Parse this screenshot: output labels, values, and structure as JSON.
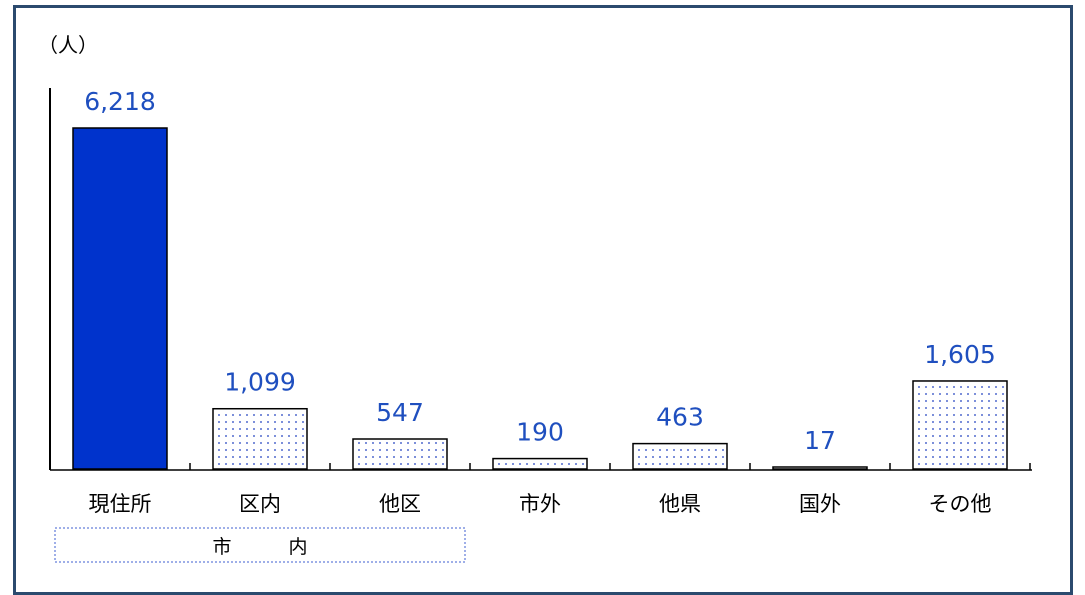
{
  "colors": {
    "frame": "#2b4a6e",
    "bar_solid": "#0033cc",
    "bar_dots": "#1f3fbf",
    "value_text": "#1f4fbf",
    "axis": "#000000",
    "bracket": "#3f5fd0"
  },
  "chart_data": {
    "type": "bar",
    "unit_label": "（人）",
    "categories": [
      "現住所",
      "区内",
      "他区",
      "市外",
      "他県",
      "国外",
      "その他"
    ],
    "values": [
      6218,
      1099,
      547,
      190,
      463,
      17,
      1605
    ],
    "value_labels": [
      "6,218",
      "1,099",
      "547",
      "190",
      "463",
      "17",
      "1,605"
    ],
    "bar_styles": [
      "solid",
      "dotted",
      "dotted",
      "dotted",
      "dotted",
      "dotted",
      "dotted"
    ],
    "group_label": "市　　　内",
    "group_span": [
      "区内",
      "他区"
    ],
    "ylim": [
      0,
      6218
    ]
  }
}
